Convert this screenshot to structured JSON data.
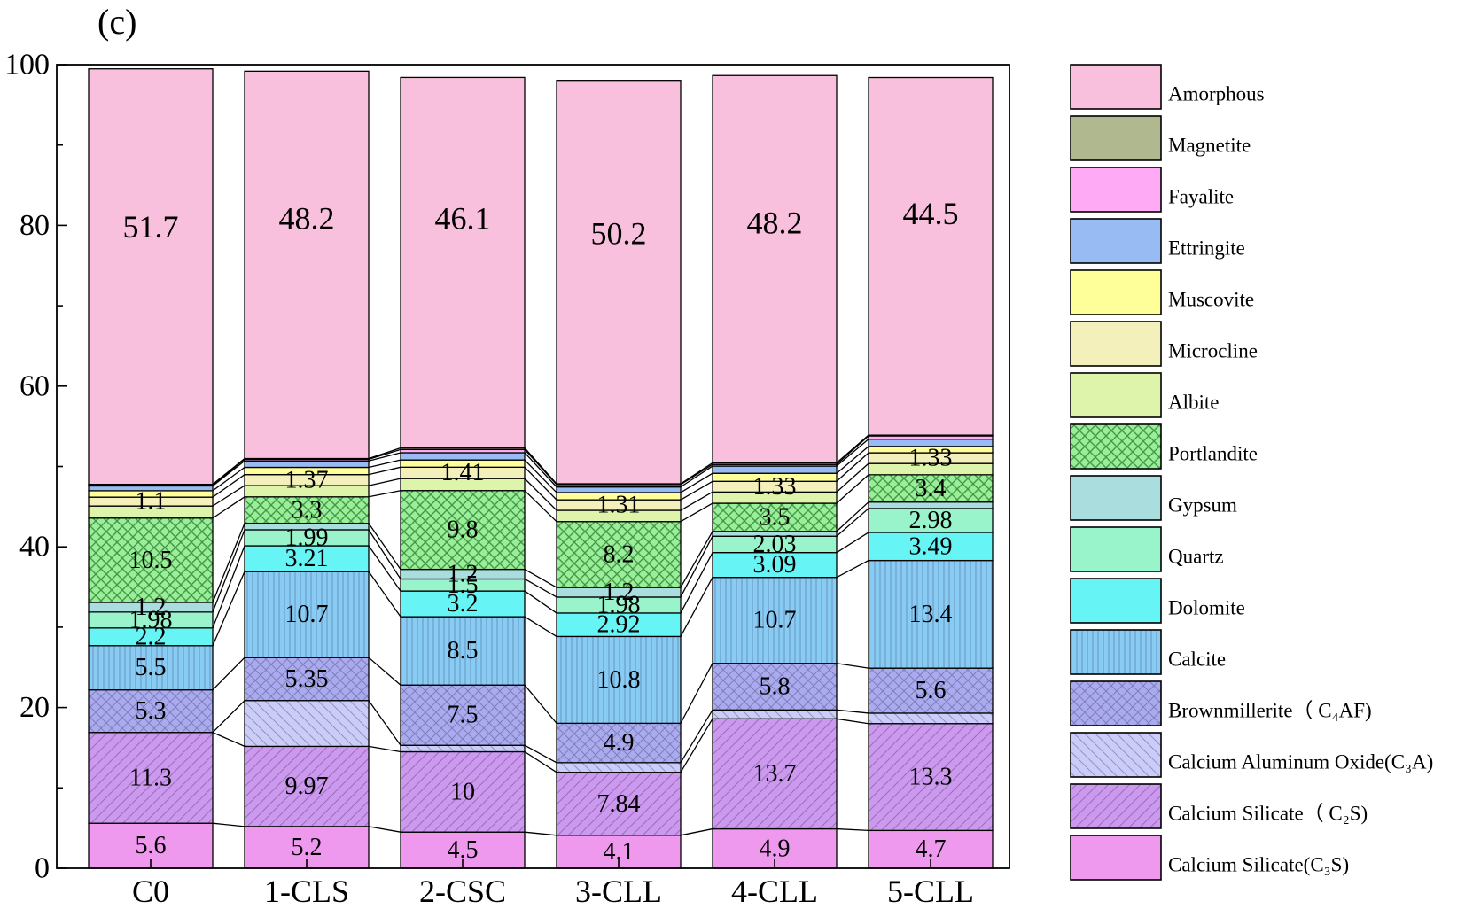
{
  "chart_data": {
    "type": "bar",
    "stacked": true,
    "panel_label": "(c)",
    "title": "",
    "xlabel": "",
    "ylabel": "",
    "ylim": [
      0,
      100
    ],
    "yticks": [
      0,
      20,
      40,
      60,
      80,
      100
    ],
    "grid": false,
    "legend_position": "right",
    "categories": [
      "C0",
      "1-CLS",
      "2-CSC",
      "3-CLL",
      "4-CLL",
      "5-CLL"
    ],
    "series": [
      {
        "name": "Calcium Silicate(C₃S)",
        "color": "#ee99ee",
        "pattern": "none",
        "values": [
          5.6,
          5.2,
          4.5,
          4.1,
          4.9,
          4.7
        ],
        "labels": [
          "5.6",
          "5.2",
          "4.5",
          "4.1",
          "4.9",
          "4.7"
        ]
      },
      {
        "name": "Calcium Silicate（ C₂S)",
        "color": "#cc99ee",
        "pattern": "diag",
        "values": [
          11.3,
          9.97,
          10,
          7.84,
          13.7,
          13.3
        ],
        "labels": [
          "11.3",
          "9.97",
          "10",
          "7.84",
          "13.7",
          "13.3"
        ]
      },
      {
        "name": "Calcium Aluminum Oxide(C₃A)",
        "color": "#ccccf8",
        "pattern": "diag-rev",
        "values": [
          0,
          5.7,
          0.8,
          1.2,
          1.1,
          1.3
        ],
        "labels": [
          "",
          "",
          "",
          "",
          "",
          ""
        ]
      },
      {
        "name": "Brownmillerite（ C₄AF)",
        "color": "#aaaaee",
        "pattern": "cross",
        "values": [
          5.3,
          5.35,
          7.5,
          4.9,
          5.8,
          5.6
        ],
        "labels": [
          "5.3",
          "5.35",
          "7.5",
          "4.9",
          "5.8",
          "5.6"
        ]
      },
      {
        "name": "Calcite",
        "color": "#88ccf4",
        "pattern": "vert",
        "values": [
          5.5,
          10.7,
          8.5,
          10.8,
          10.7,
          13.4
        ],
        "labels": [
          "5.5",
          "10.7",
          "8.5",
          "10.8",
          "10.7",
          "13.4"
        ]
      },
      {
        "name": "Dolomite",
        "color": "#66f4f4",
        "pattern": "none",
        "values": [
          2.2,
          3.21,
          3.2,
          2.92,
          3.09,
          3.49
        ],
        "labels": [
          "2.2",
          "3.21",
          "3.2",
          "2.92",
          "3.09",
          "3.49"
        ]
      },
      {
        "name": "Quartz",
        "color": "#99f4cc",
        "pattern": "none",
        "values": [
          1.98,
          1.99,
          1.5,
          1.98,
          2.03,
          2.98
        ],
        "labels": [
          "1.98",
          "1.99",
          "1.5",
          "1.98",
          "2.03",
          "2.98"
        ]
      },
      {
        "name": "Gypsum",
        "color": "#aadddd",
        "pattern": "none",
        "values": [
          1.2,
          0.8,
          1.2,
          1.2,
          0.6,
          0.8
        ],
        "labels": [
          "1.2",
          "",
          "1.2",
          "1.2",
          "",
          ""
        ]
      },
      {
        "name": "Portlandite",
        "color": "#99ee99",
        "pattern": "grid",
        "values": [
          10.5,
          3.3,
          9.8,
          8.2,
          3.5,
          3.4
        ],
        "labels": [
          "10.5",
          "3.3",
          "9.8",
          "8.2",
          "3.5",
          "3.4"
        ]
      },
      {
        "name": "Albite",
        "color": "#ddf4aa",
        "pattern": "none",
        "values": [
          1.5,
          1.4,
          1.5,
          1.4,
          1.4,
          1.4
        ],
        "labels": [
          "",
          "",
          "",
          "",
          "",
          ""
        ]
      },
      {
        "name": "Microcline",
        "color": "#f4f0bb",
        "pattern": "none",
        "values": [
          1.1,
          1.37,
          1.41,
          1.31,
          1.33,
          1.33
        ],
        "labels": [
          "1.1",
          "1.37",
          "1.41",
          "1.31",
          "1.33",
          "1.33"
        ]
      },
      {
        "name": "Muscovite",
        "color": "#ffff99",
        "pattern": "none",
        "values": [
          0.8,
          0.9,
          0.9,
          0.9,
          1.0,
          0.8
        ],
        "labels": [
          "",
          "",
          "",
          "",
          "",
          ""
        ]
      },
      {
        "name": "Ettringite",
        "color": "#99bbf4",
        "pattern": "none",
        "values": [
          0.6,
          0.8,
          0.9,
          0.7,
          0.9,
          0.9
        ],
        "labels": [
          "",
          "",
          "",
          "",
          "",
          ""
        ]
      },
      {
        "name": "Fayalite",
        "color": "#ffaaf4",
        "pattern": "none",
        "values": [
          0.1,
          0.2,
          0.4,
          0.3,
          0.2,
          0.4
        ],
        "labels": [
          "",
          "",
          "",
          "",
          "",
          ""
        ]
      },
      {
        "name": "Magnetite",
        "color": "#b0b890",
        "pattern": "none",
        "values": [
          0.1,
          0.1,
          0.2,
          0.1,
          0.2,
          0.1
        ],
        "labels": [
          "",
          "",
          "",
          "",
          "",
          ""
        ]
      },
      {
        "name": "Amorphous",
        "color": "#f8c0dc",
        "pattern": "none",
        "values": [
          51.7,
          48.2,
          46.1,
          50.2,
          48.2,
          44.5
        ],
        "labels": [
          "51.7",
          "48.2",
          "46.1",
          "50.2",
          "48.2",
          "44.5"
        ]
      }
    ]
  }
}
